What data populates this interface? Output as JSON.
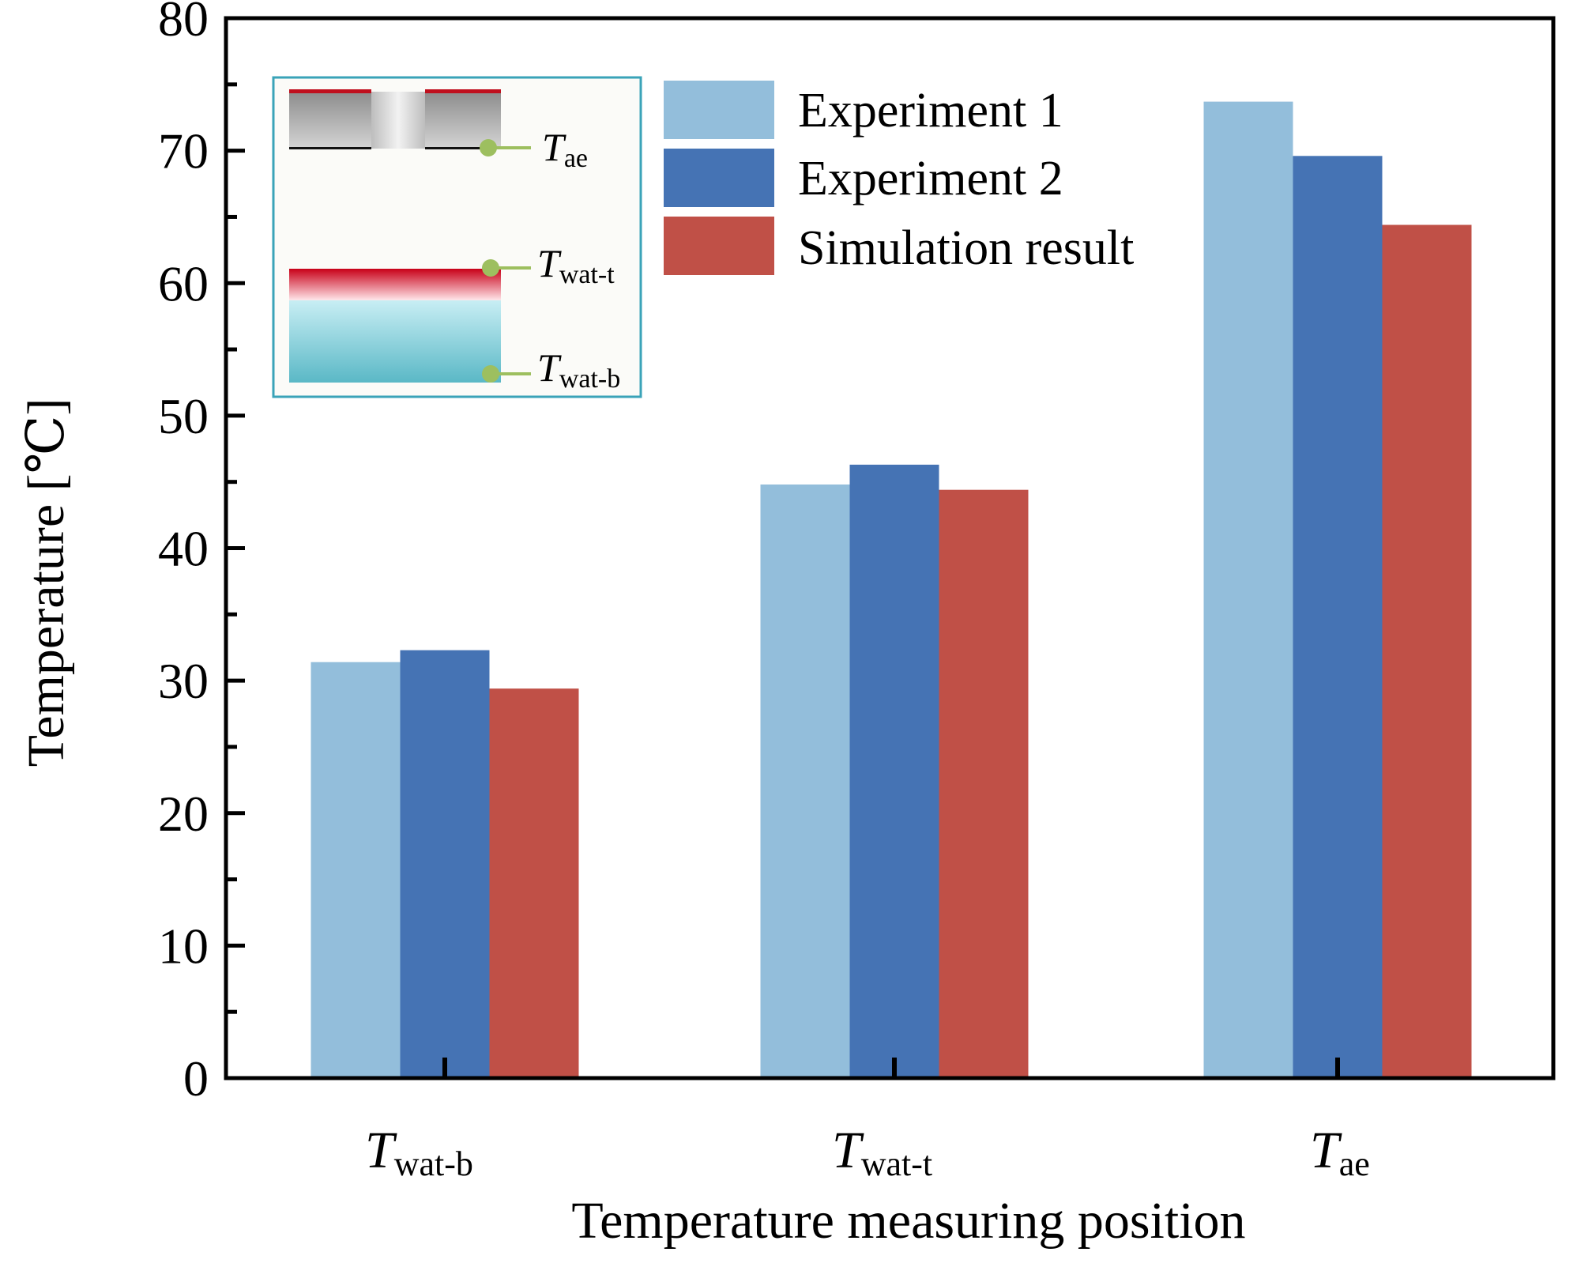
{
  "chart_data": {
    "type": "bar",
    "xlabel": "Temperature measuring position",
    "ylabel": "Temperature [℃]",
    "ylim": [
      0,
      80
    ],
    "yticks": [
      0,
      10,
      20,
      30,
      40,
      50,
      60,
      70,
      80
    ],
    "grid": false,
    "legend_position": "top-right",
    "categories": [
      {
        "main": "T",
        "sub": "wat-b"
      },
      {
        "main": "T",
        "sub": "wat-t"
      },
      {
        "main": "T",
        "sub": "ae"
      }
    ],
    "series": [
      {
        "name": "Experiment 1",
        "color": "#93bedb",
        "values": [
          31.4,
          44.8,
          73.7
        ]
      },
      {
        "name": "Experiment 2",
        "color": "#4573b4",
        "values": [
          32.3,
          46.3,
          69.6
        ]
      },
      {
        "name": "Simulation result",
        "color": "#c05047",
        "values": [
          29.4,
          44.4,
          64.4
        ]
      }
    ],
    "inset": {
      "labels": [
        {
          "main": "T",
          "sub": "ae"
        },
        {
          "main": "T",
          "sub": "wat-t"
        },
        {
          "main": "T",
          "sub": "wat-b"
        }
      ],
      "marker_color": "#9dbf5f",
      "border_color": "#3aa3b8"
    }
  }
}
